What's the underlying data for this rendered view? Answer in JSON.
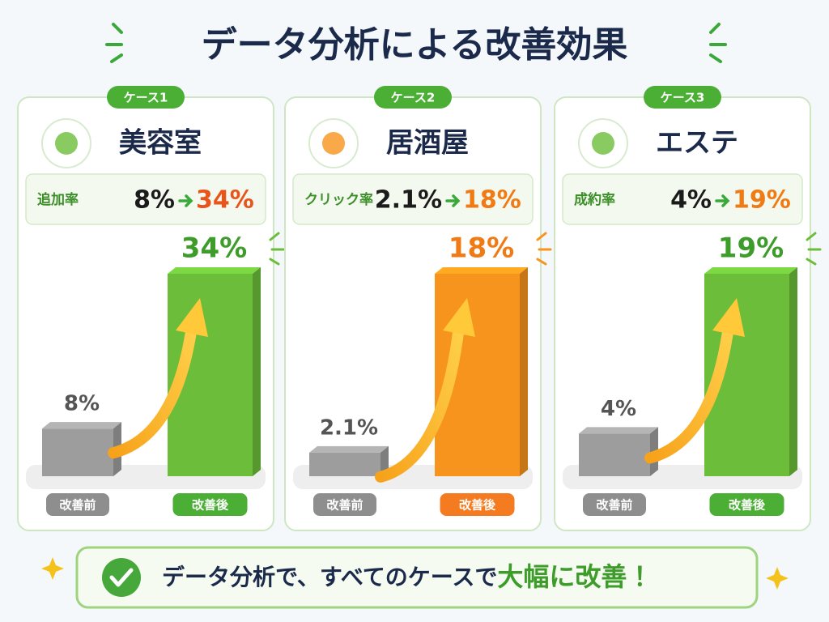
{
  "title": "データ分析による改善効果",
  "chart_data": [
    {
      "type": "bar",
      "badge": "ケース1",
      "title": "美容室",
      "metric_label": "追加率",
      "categories": [
        "改善前",
        "改善後"
      ],
      "values": [
        8,
        34
      ],
      "value_labels": [
        "8%",
        "34%"
      ],
      "colors": [
        "#9d9d9d",
        "#6cbd3a"
      ]
    },
    {
      "type": "bar",
      "badge": "ケース2",
      "title": "居酒屋",
      "metric_label": "クリック率",
      "categories": [
        "改善前",
        "改善後"
      ],
      "values": [
        2.1,
        18
      ],
      "value_labels": [
        "2.1%",
        "18%"
      ],
      "colors": [
        "#9d9d9d",
        "#f7941d"
      ]
    },
    {
      "type": "bar",
      "badge": "ケース3",
      "title": "エステ",
      "metric_label": "成約率",
      "categories": [
        "改善前",
        "改善後"
      ],
      "values": [
        4,
        19
      ],
      "value_labels": [
        "4%",
        "19%"
      ],
      "colors": [
        "#9d9d9d",
        "#6cbd3a"
      ]
    }
  ],
  "footer": {
    "text": "データ分析で、すべてのケースで",
    "highlight": "大幅に改善！"
  }
}
